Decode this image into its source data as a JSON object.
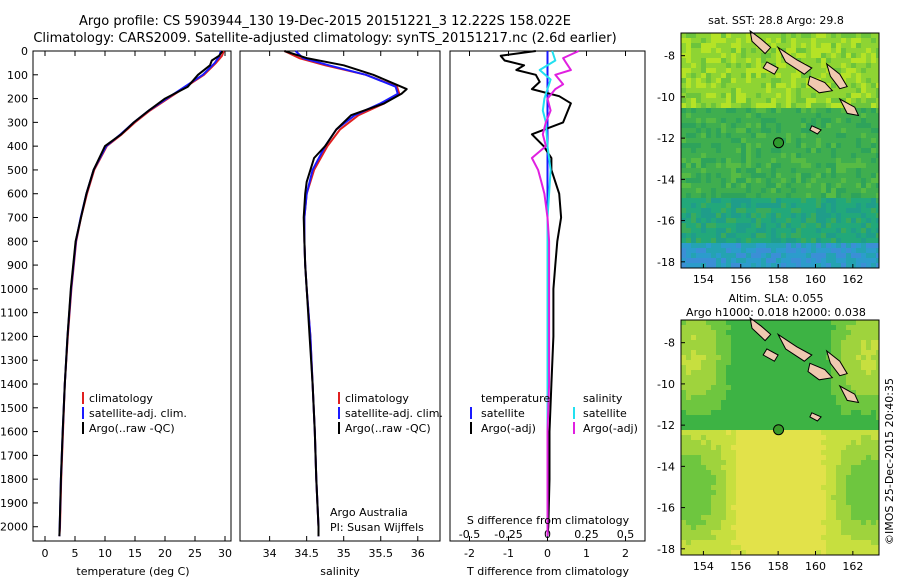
{
  "header": {
    "line1": "Argo profile: CS 5903944_130 19-Dec-2015 20151221_3 12.222S 158.022E",
    "line2": "Climatology: CARS2009. Satellite-adjusted climatology: synTS_20151217.nc (2.6d earlier)"
  },
  "colors": {
    "climatology": "#e02020",
    "satellite": "#1a1aff",
    "argo": "#000000",
    "sal_satellite": "#22e0f0",
    "sal_argo": "#e020e0"
  },
  "chart_data": [
    {
      "type": "line",
      "id": "temperature",
      "xlabel": "temperature (deg C)",
      "ylabel": "",
      "xlim": [
        -2,
        31
      ],
      "ylim": [
        2060,
        0
      ],
      "xticks": [
        0,
        5,
        10,
        15,
        20,
        25,
        30
      ],
      "yticks": [
        0,
        100,
        200,
        300,
        400,
        500,
        600,
        700,
        800,
        900,
        1000,
        1100,
        1200,
        1300,
        1400,
        1500,
        1600,
        1700,
        1800,
        1900,
        2000
      ],
      "legend": [
        "climatology",
        "satellite-adj. clim.",
        "Argo(..raw -QC)"
      ],
      "series": [
        {
          "name": "climatology",
          "color_key": "climatology",
          "depth": [
            0,
            20,
            50,
            100,
            150,
            200,
            250,
            300,
            350,
            400,
            500,
            600,
            700,
            800,
            1000,
            1200,
            1400,
            1600,
            1800,
            2000,
            2040
          ],
          "values": [
            29.8,
            29.5,
            28.5,
            26.5,
            23.5,
            20.5,
            17.5,
            15.0,
            12.8,
            10.3,
            8.2,
            7.0,
            6.0,
            5.2,
            4.4,
            3.8,
            3.3,
            3.0,
            2.7,
            2.5,
            2.4
          ]
        },
        {
          "name": "satellite-adj. clim.",
          "color_key": "satellite",
          "depth": [
            0,
            20,
            50,
            100,
            150,
            200,
            250,
            300,
            350,
            400,
            500,
            600,
            700,
            800,
            1000,
            1200,
            1400,
            1600,
            1800,
            2000,
            2040
          ],
          "values": [
            29.3,
            29.1,
            28.3,
            26.3,
            23.3,
            20.3,
            17.3,
            14.8,
            12.6,
            10.2,
            8.1,
            6.9,
            5.95,
            5.15,
            4.35,
            3.75,
            3.3,
            2.95,
            2.65,
            2.45,
            2.4
          ]
        },
        {
          "name": "Argo(..raw -QC)",
          "color_key": "argo",
          "depth": [
            0,
            20,
            40,
            60,
            100,
            150,
            200,
            250,
            300,
            350,
            400,
            500,
            600,
            700,
            800,
            1000,
            1200,
            1400,
            1600,
            1800,
            2000,
            2040
          ],
          "values": [
            29.6,
            29.0,
            27.8,
            27.5,
            25.5,
            23.8,
            20.0,
            17.3,
            14.8,
            12.7,
            10.0,
            8.1,
            6.9,
            6.0,
            5.1,
            4.3,
            3.75,
            3.3,
            2.95,
            2.65,
            2.45,
            2.4
          ]
        }
      ]
    },
    {
      "type": "line",
      "id": "salinity",
      "xlabel": "salinity",
      "xlim": [
        33.6,
        36.3
      ],
      "ylim": [
        2060,
        0
      ],
      "xticks": [
        34,
        34.5,
        35,
        35.5,
        36
      ],
      "legend": [
        "climatology",
        "satellite-adj. clim.",
        "Argo(..raw -QC)"
      ],
      "annotations": [
        "Argo Australia",
        "PI: Susan Wijffels"
      ],
      "series": [
        {
          "name": "climatology",
          "color_key": "climatology",
          "depth": [
            0,
            30,
            60,
            100,
            150,
            180,
            220,
            270,
            330,
            400,
            500,
            600,
            700,
            800,
            900,
            1000,
            1200,
            1400,
            1600,
            1800,
            2000,
            2040
          ],
          "values": [
            34.2,
            34.4,
            34.75,
            35.3,
            35.72,
            35.75,
            35.55,
            35.2,
            34.95,
            34.78,
            34.6,
            34.5,
            34.47,
            34.47,
            34.48,
            34.5,
            34.55,
            34.58,
            34.61,
            34.63,
            34.66,
            34.66
          ]
        },
        {
          "name": "satellite-adj. clim.",
          "color_key": "satellite",
          "depth": [
            0,
            30,
            60,
            100,
            150,
            180,
            220,
            270,
            330,
            400,
            500,
            600,
            700,
            800,
            900,
            1000,
            1200,
            1400,
            1600,
            1800,
            2000,
            2040
          ],
          "values": [
            34.35,
            34.45,
            34.8,
            35.3,
            35.7,
            35.73,
            35.5,
            35.15,
            34.9,
            34.75,
            34.58,
            34.5,
            34.47,
            34.47,
            34.48,
            34.5,
            34.55,
            34.58,
            34.61,
            34.63,
            34.66,
            34.66
          ]
        },
        {
          "name": "Argo(..raw -QC)",
          "color_key": "argo",
          "depth": [
            0,
            30,
            60,
            100,
            140,
            160,
            180,
            220,
            270,
            330,
            400,
            450,
            500,
            550,
            600,
            700,
            800,
            900,
            1000,
            1200,
            1400,
            1600,
            1800,
            2000,
            2040
          ],
          "values": [
            34.2,
            34.5,
            35.0,
            35.4,
            35.7,
            35.85,
            35.78,
            35.55,
            35.1,
            34.9,
            34.75,
            34.6,
            34.55,
            34.5,
            34.48,
            34.46,
            34.47,
            34.48,
            34.5,
            34.54,
            34.58,
            34.61,
            34.63,
            34.66,
            34.66
          ]
        }
      ]
    },
    {
      "type": "line",
      "id": "differences",
      "xlabel": "T difference from climatology",
      "xlabel_top": "S difference from climatology",
      "xlim": [
        -2.5,
        2.5
      ],
      "ylim": [
        2060,
        0
      ],
      "xticks": [
        -2,
        -1,
        0,
        1,
        2
      ],
      "xticklabels": [
        "-2",
        "-1",
        "0",
        "1",
        "2"
      ],
      "sticks_values": [
        -0.5,
        -0.25,
        0,
        0.25,
        0.5
      ],
      "sticks_labels": [
        "-0.5",
        "-0.25",
        "0",
        "0.25",
        "0.5"
      ],
      "s_scale": 4,
      "legend": {
        "temperature_title": "temperature",
        "salinity_title": "salinity",
        "temperature_items": [
          "satellite",
          "Argo(-adj)"
        ],
        "salinity_items": [
          "satellite",
          "Argo(-adj)"
        ]
      },
      "series": [
        {
          "name": "T satellite",
          "color_key": "satellite",
          "depth": [
            0,
            200,
            400,
            600,
            800,
            1000,
            1200,
            1400,
            1600,
            1800,
            2040
          ],
          "values": [
            0,
            0,
            0,
            0,
            0,
            0,
            0,
            0,
            0,
            0,
            0
          ]
        },
        {
          "name": "T Argo(-adj)",
          "color_key": "argo",
          "depth": [
            0,
            20,
            40,
            60,
            80,
            100,
            130,
            160,
            190,
            220,
            260,
            300,
            350,
            400,
            450,
            500,
            600,
            700,
            800,
            900,
            1000,
            1200,
            1400,
            1600,
            1800,
            2000,
            2040
          ],
          "values": [
            -0.3,
            -1.2,
            -1.1,
            -0.6,
            -0.8,
            -0.3,
            -0.2,
            -0.4,
            0.3,
            0.6,
            0.5,
            0.4,
            -0.4,
            -0.1,
            0.1,
            0.1,
            0.3,
            0.35,
            0.25,
            0.2,
            0.15,
            0.15,
            0.1,
            0.05,
            0.05,
            0.02,
            0.0
          ]
        },
        {
          "name": "S satellite",
          "color_key": "sal_satellite",
          "depth": [
            0,
            40,
            80,
            120,
            160,
            200,
            250,
            300,
            400,
            500,
            600,
            700,
            800,
            1000,
            1200,
            1400,
            1600,
            1800,
            2040
          ],
          "values": [
            0.03,
            0.05,
            -0.05,
            0.02,
            0.0,
            -0.02,
            -0.03,
            -0.01,
            0.0,
            0.02,
            0.01,
            0.0,
            0.0,
            0.0,
            0.0,
            0.0,
            0.0,
            0.0,
            0.0
          ]
        },
        {
          "name": "S Argo(-adj)",
          "color_key": "sal_argo",
          "depth": [
            0,
            30,
            50,
            80,
            100,
            140,
            160,
            200,
            250,
            300,
            350,
            400,
            450,
            500,
            550,
            600,
            700,
            800,
            900,
            1000,
            1200,
            1400,
            1600,
            1800,
            2000,
            2040
          ],
          "values": [
            0.2,
            0.1,
            0.12,
            0.15,
            0.05,
            0.1,
            0.05,
            0.0,
            0.02,
            -0.01,
            -0.03,
            -0.01,
            -0.1,
            -0.06,
            -0.04,
            -0.02,
            0.0,
            0.01,
            0.01,
            0.01,
            0.01,
            0.01,
            0.0,
            0.0,
            0.0,
            0.0
          ]
        }
      ]
    }
  ],
  "maps": [
    {
      "id": "sst_map",
      "title": "sat. SST: 28.8 Argo: 29.8",
      "xticks": [
        154,
        156,
        158,
        160,
        162
      ],
      "yticks": [
        -8,
        -10,
        -12,
        -14,
        -16,
        -18
      ],
      "xlim": [
        152.8,
        163.4
      ],
      "ylim": [
        -18.3,
        -6.9
      ],
      "float_position": {
        "lon": 158.022,
        "lat": -12.222
      },
      "float_color": "#2e9a2e"
    },
    {
      "id": "sla_map",
      "title_line1": "Altim. SLA: 0.055",
      "title_line2": "Argo h1000: 0.018 h2000: 0.038",
      "xticks": [
        154,
        156,
        158,
        160,
        162
      ],
      "yticks": [
        -8,
        -10,
        -12,
        -14,
        -16,
        -18
      ],
      "xlim": [
        152.8,
        163.4
      ],
      "ylim": [
        -18.3,
        -6.9
      ],
      "float_position": {
        "lon": 158.022,
        "lat": -12.222
      },
      "float_color": "#3a9a2a"
    }
  ],
  "credit": "©IMOS 25-Dec-2015 20:40:35"
}
